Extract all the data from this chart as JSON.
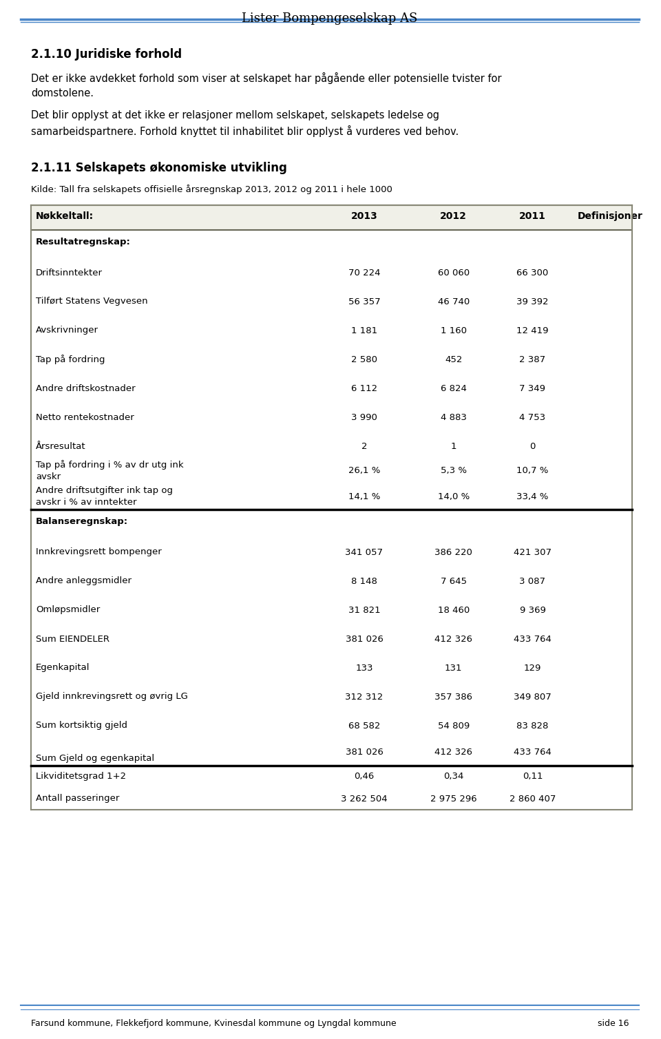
{
  "page_title": "Lister Bompengeselskap AS",
  "footer_text": "Farsund kommune, Flekkefjord kommune, Kvinesdal kommune og Lyngdal kommune",
  "footer_page": "side 16",
  "section_10_title": "2.1.10 Juridiske forhold",
  "section_10_text1": "Det er ikke avdekket forhold som viser at selskapet har pågående eller potensielle tvister for\ndomstolene.",
  "section_10_text2": "Det blir opplyst at det ikke er relasjoner mellom selskapet, selskapets ledelse og\nsamarbeidspartnere. Forhold knyttet til inhabilitet blir opplyst å vurderes ved behov.",
  "section_11_title": "2.1.11 Selskapets økonomiske utvikling",
  "source_text": "Kilde: Tall fra selskapets offisielle årsregnskap 2013, 2012 og 2011 i hele 1000",
  "table_header": [
    "Nøkkeltall:",
    "2013",
    "2012",
    "2011",
    "Definisjoner"
  ],
  "table_bg_color": "#f0f0e8",
  "table_rows": [
    {
      "label": "Resultatregnskap:",
      "values": [
        "",
        "",
        ""
      ],
      "bold": true,
      "section_header": true
    },
    {
      "label": "",
      "values": [
        "",
        "",
        ""
      ],
      "bold": false,
      "spacer": true
    },
    {
      "label": "Driftsinntekter",
      "values": [
        "70 224",
        "60 060",
        "66 300"
      ],
      "bold": false
    },
    {
      "label": "",
      "values": [
        "",
        "",
        ""
      ],
      "bold": false,
      "spacer": true
    },
    {
      "label": "Tilført Statens Vegvesen",
      "values": [
        "56 357",
        "46 740",
        "39 392"
      ],
      "bold": false
    },
    {
      "label": "",
      "values": [
        "",
        "",
        ""
      ],
      "bold": false,
      "spacer": true
    },
    {
      "label": "Avskrivninger",
      "values": [
        "1 181",
        "1 160",
        "12 419"
      ],
      "bold": false
    },
    {
      "label": "",
      "values": [
        "",
        "",
        ""
      ],
      "bold": false,
      "spacer": true
    },
    {
      "label": "Tap på fordring",
      "values": [
        "2 580",
        "452",
        "2 387"
      ],
      "bold": false
    },
    {
      "label": "",
      "values": [
        "",
        "",
        ""
      ],
      "bold": false,
      "spacer": true
    },
    {
      "label": "Andre driftskostnader",
      "values": [
        "6 112",
        "6 824",
        "7 349"
      ],
      "bold": false
    },
    {
      "label": "",
      "values": [
        "",
        "",
        ""
      ],
      "bold": false,
      "spacer": true
    },
    {
      "label": "Netto rentekostnader",
      "values": [
        "3 990",
        "4 883",
        "4 753"
      ],
      "bold": false
    },
    {
      "label": "",
      "values": [
        "",
        "",
        ""
      ],
      "bold": false,
      "spacer": true
    },
    {
      "label": "Årsresultat",
      "values": [
        "2",
        "1",
        "0"
      ],
      "bold": false
    },
    {
      "label": "Tap på fordring i % av dr utg ink\navskr",
      "values": [
        "26,1 %",
        "5,3 %",
        "10,7 %"
      ],
      "bold": false,
      "multiline": true
    },
    {
      "label": "Andre driftsutgifter ink tap og\navskr i % av inntekter",
      "values": [
        "14,1 %",
        "14,0 %",
        "33,4 %"
      ],
      "bold": false,
      "multiline": true
    },
    {
      "label": "Balanseregnskap:",
      "values": [
        "",
        "",
        ""
      ],
      "bold": true,
      "section_header": true,
      "thick_border_above": true
    },
    {
      "label": "",
      "values": [
        "",
        "",
        ""
      ],
      "bold": false,
      "spacer": true
    },
    {
      "label": "Innkrevingsrett bompenger",
      "values": [
        "341 057",
        "386 220",
        "421 307"
      ],
      "bold": false
    },
    {
      "label": "",
      "values": [
        "",
        "",
        ""
      ],
      "bold": false,
      "spacer": true
    },
    {
      "label": "Andre anleggsmidler",
      "values": [
        "8 148",
        "7 645",
        "3 087"
      ],
      "bold": false
    },
    {
      "label": "",
      "values": [
        "",
        "",
        ""
      ],
      "bold": false,
      "spacer": true
    },
    {
      "label": "Omløpsmidler",
      "values": [
        "31 821",
        "18 460",
        "9 369"
      ],
      "bold": false
    },
    {
      "label": "",
      "values": [
        "",
        "",
        ""
      ],
      "bold": false,
      "spacer": true
    },
    {
      "label": "Sum EIENDELER",
      "values": [
        "381 026",
        "412 326",
        "433 764"
      ],
      "bold": false
    },
    {
      "label": "",
      "values": [
        "",
        "",
        ""
      ],
      "bold": false,
      "spacer": true
    },
    {
      "label": "Egenkapital",
      "values": [
        "133",
        "131",
        "129"
      ],
      "bold": false
    },
    {
      "label": "",
      "values": [
        "",
        "",
        ""
      ],
      "bold": false,
      "spacer": true
    },
    {
      "label": "Gjeld innkrevingsrett og øvrig LG",
      "values": [
        "312 312",
        "357 386",
        "349 807"
      ],
      "bold": false
    },
    {
      "label": "",
      "values": [
        "",
        "",
        ""
      ],
      "bold": false,
      "spacer": true
    },
    {
      "label": "Sum kortsiktig gjeld",
      "values": [
        "68 582",
        "54 809",
        "83 828"
      ],
      "bold": false
    },
    {
      "label": "",
      "values": [
        "",
        "",
        ""
      ],
      "bold": false,
      "spacer": true
    },
    {
      "label": "Sum Gjeld og egenkapital",
      "values": [
        "381 026",
        "412 326",
        "433 764"
      ],
      "bold": false,
      "values_above": true
    },
    {
      "label": "Likviditetsgrad 1+2",
      "values": [
        "0,46",
        "0,34",
        "0,11"
      ],
      "bold": false,
      "thick_border_above": true
    },
    {
      "label": "Antall passeringer",
      "values": [
        "3 262 504",
        "2 975 296",
        "2 860 407"
      ],
      "bold": false
    }
  ]
}
